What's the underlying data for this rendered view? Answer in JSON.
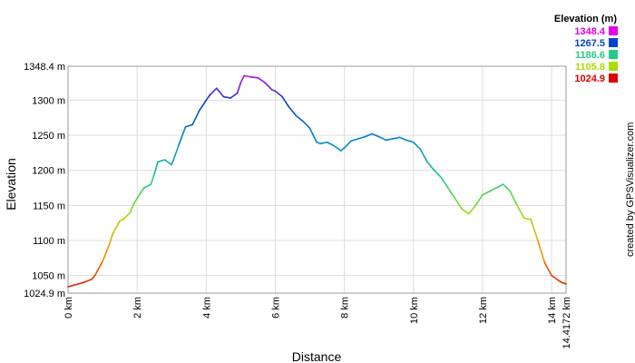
{
  "chart_data": {
    "type": "line",
    "xlabel": "Distance",
    "ylabel": "Elevation",
    "xlim": [
      0,
      14.4172
    ],
    "ylim": [
      1024.9,
      1348.4
    ],
    "x_ticks": [
      {
        "value": 0,
        "label": "0 km"
      },
      {
        "value": 2,
        "label": "2 km"
      },
      {
        "value": 4,
        "label": "4 km"
      },
      {
        "value": 6,
        "label": "6 km"
      },
      {
        "value": 8,
        "label": "8 km"
      },
      {
        "value": 10,
        "label": "10 km"
      },
      {
        "value": 12,
        "label": "12 km"
      },
      {
        "value": 14,
        "label": "14 km"
      },
      {
        "value": 14.4172,
        "label": "14.4172 km"
      }
    ],
    "y_ticks": [
      {
        "value": 1024.9,
        "label": "1024.9 m"
      },
      {
        "value": 1050,
        "label": "1050 m"
      },
      {
        "value": 1100,
        "label": "1100 m"
      },
      {
        "value": 1150,
        "label": "1150 m"
      },
      {
        "value": 1200,
        "label": "1200 m"
      },
      {
        "value": 1250,
        "label": "1250 m"
      },
      {
        "value": 1300,
        "label": "1300 m"
      },
      {
        "value": 1348.4,
        "label": "1348.4 m"
      }
    ],
    "legend": {
      "title": "Elevation (m)",
      "entries": [
        {
          "label": "1348.4",
          "color": "#e600e6"
        },
        {
          "label": "1267.5",
          "color": "#0044cc"
        },
        {
          "label": "1186.6",
          "color": "#22cc88"
        },
        {
          "label": "1105.8",
          "color": "#aadd00"
        },
        {
          "label": "1024.9",
          "color": "#dd0000"
        }
      ]
    },
    "grid": true,
    "legend_position": "top-right",
    "series": [
      {
        "x": [
          0,
          0.3,
          0.5,
          0.7,
          0.8,
          1.0,
          1.2,
          1.3,
          1.5,
          1.6,
          1.8,
          1.9,
          2.0,
          2.1,
          2.2,
          2.4,
          2.5,
          2.6,
          2.8,
          3.0,
          3.2,
          3.4,
          3.6,
          3.8,
          4.0,
          4.1,
          4.3,
          4.5,
          4.7,
          4.9,
          5.0,
          5.1,
          5.3,
          5.5,
          5.7,
          5.9,
          6.0,
          6.2,
          6.4,
          6.6,
          6.8,
          7.0,
          7.1,
          7.2,
          7.3,
          7.5,
          7.7,
          7.9,
          8.0,
          8.2,
          8.4,
          8.6,
          8.8,
          9.0,
          9.2,
          9.4,
          9.6,
          9.8,
          10.0,
          10.2,
          10.4,
          10.6,
          10.8,
          11.0,
          11.2,
          11.4,
          11.6,
          11.8,
          12.0,
          12.2,
          12.4,
          12.6,
          12.8,
          13.0,
          13.2,
          13.4,
          13.6,
          13.8,
          14.0,
          14.2,
          14.3,
          14.4172
        ],
        "y": [
          1034,
          1038,
          1041,
          1045,
          1052,
          1070,
          1095,
          1110,
          1128,
          1130,
          1140,
          1152,
          1160,
          1168,
          1175,
          1180,
          1195,
          1212,
          1215,
          1208,
          1235,
          1262,
          1265,
          1285,
          1300,
          1307,
          1317,
          1305,
          1303,
          1310,
          1325,
          1335,
          1333,
          1332,
          1325,
          1315,
          1313,
          1305,
          1290,
          1278,
          1270,
          1260,
          1250,
          1240,
          1238,
          1240,
          1235,
          1228,
          1232,
          1242,
          1245,
          1248,
          1252,
          1248,
          1243,
          1245,
          1247,
          1243,
          1240,
          1230,
          1212,
          1200,
          1190,
          1175,
          1160,
          1145,
          1138,
          1150,
          1165,
          1170,
          1175,
          1180,
          1170,
          1150,
          1132,
          1130,
          1100,
          1068,
          1050,
          1043,
          1040,
          1038
        ]
      }
    ]
  },
  "credit_text": "created by GPSVisualizer.com"
}
